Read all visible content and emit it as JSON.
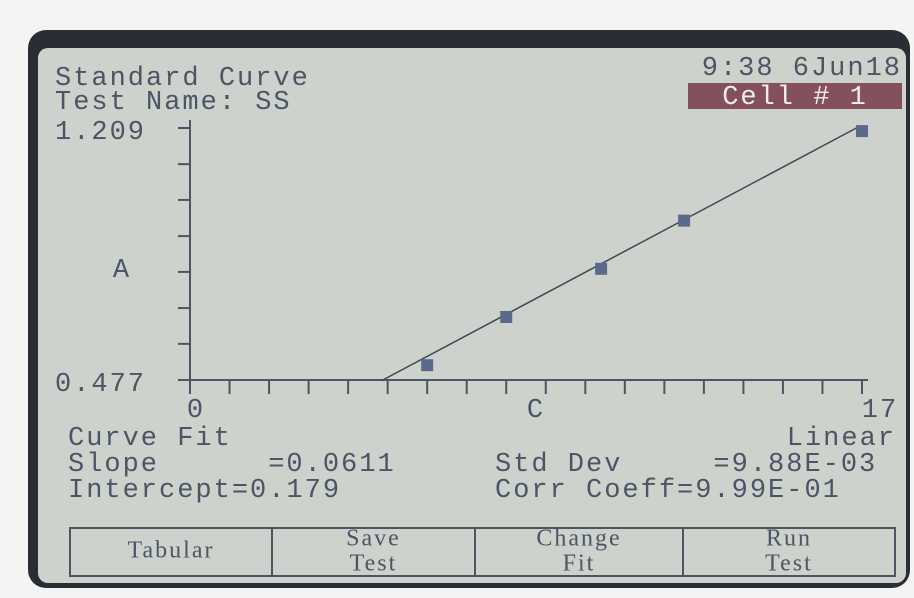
{
  "header": {
    "title": "Standard Curve",
    "test_name": "Test Name: SS",
    "time": "9:38 6Jun18",
    "cell": "Cell # 1"
  },
  "chart_data": {
    "type": "scatter",
    "xlabel": "C",
    "ylabel": "A",
    "xlim": [
      0,
      17
    ],
    "ylim": [
      0.477,
      1.209
    ],
    "xticks": [
      0,
      17
    ],
    "yticks": [
      0.477,
      1.209
    ],
    "x_minor_ticks": [
      1,
      2,
      3,
      4,
      5,
      6,
      7,
      8,
      9,
      10,
      11,
      12,
      13,
      14,
      15,
      16
    ],
    "y_minor_ticks": [
      0.582,
      0.686,
      0.791,
      0.895,
      1.0,
      1.104
    ],
    "series": [
      {
        "color": "#5b6a8c",
        "x": [
          6,
          8,
          10.4,
          12.5,
          17
        ],
        "values": [
          0.52,
          0.66,
          0.8,
          0.94,
          1.2
        ]
      }
    ],
    "fit": {
      "slope": 0.0611,
      "intercept": 0.179
    }
  },
  "results": {
    "curve_fit": "Curve Fit",
    "fit_name": "Linear",
    "slope": "Slope      =0.0611",
    "intercept": "Intercept=0.179",
    "std_dev": "Std Dev     =9.88E-03",
    "corr_coeff": "Corr Coeff=9.99E-01"
  },
  "buttons": [
    [
      "Tabular"
    ],
    [
      "Save",
      "Test"
    ],
    [
      "Change",
      "Fit"
    ],
    [
      "Run",
      "Test"
    ]
  ]
}
